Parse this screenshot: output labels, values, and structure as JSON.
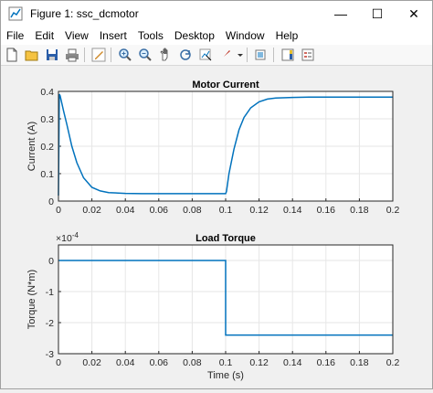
{
  "window": {
    "title": "Figure 1: ssc_dcmotor",
    "minimize": "—",
    "maximize": "☐",
    "close": "✕"
  },
  "menu": [
    "File",
    "Edit",
    "View",
    "Insert",
    "Tools",
    "Desktop",
    "Window",
    "Help"
  ],
  "toolbar": {
    "icons": [
      "new-figure-icon",
      "open-file-icon",
      "save-icon",
      "print-icon",
      "edit-plot-icon",
      "zoom-in-icon",
      "zoom-out-icon",
      "pan-icon",
      "rotate-3d-icon",
      "data-cursor-icon",
      "brush-icon",
      "link-plot-icon",
      "insert-colorbar-icon",
      "insert-legend-icon"
    ]
  },
  "colors": {
    "line": "#0072BD",
    "axes_bg": "#ffffff",
    "grid": "#e6e6e6",
    "axis": "#262626"
  },
  "chart_data": [
    {
      "type": "line",
      "title": "Motor Current",
      "xlabel": "",
      "ylabel": "Current (A)",
      "xlim": [
        0,
        0.2
      ],
      "ylim": [
        0,
        0.4
      ],
      "xticks": [
        "0",
        "0.02",
        "0.04",
        "0.06",
        "0.08",
        "0.1",
        "0.12",
        "0.14",
        "0.16",
        "0.18",
        "0.2"
      ],
      "yticks": [
        "0",
        "0.1",
        "0.2",
        "0.3",
        "0.4"
      ],
      "grid": true,
      "series": [
        {
          "x": [
            0,
            0.0005,
            0.001,
            0.003,
            0.005,
            0.008,
            0.011,
            0.015,
            0.02,
            0.025,
            0.03,
            0.04,
            0.05,
            0.07,
            0.09,
            0.1,
            0.1005,
            0.102,
            0.105,
            0.108,
            0.111,
            0.115,
            0.12,
            0.125,
            0.13,
            0.14,
            0.15,
            0.17,
            0.2
          ],
          "y": [
            0.02,
            0.39,
            0.384,
            0.33,
            0.28,
            0.2,
            0.14,
            0.085,
            0.05,
            0.037,
            0.031,
            0.028,
            0.027,
            0.027,
            0.027,
            0.027,
            0.035,
            0.1,
            0.19,
            0.26,
            0.305,
            0.34,
            0.362,
            0.372,
            0.376,
            0.378,
            0.379,
            0.379,
            0.379
          ]
        }
      ]
    },
    {
      "type": "line",
      "title": "Load Torque",
      "xlabel": "Time (s)",
      "ylabel": "Torque (N*m)",
      "exponent": "×10",
      "exponent_power": "-4",
      "xlim": [
        0,
        0.2
      ],
      "ylim": [
        -3,
        0.5
      ],
      "xticks": [
        "0",
        "0.02",
        "0.04",
        "0.06",
        "0.08",
        "0.1",
        "0.12",
        "0.14",
        "0.16",
        "0.18",
        "0.2"
      ],
      "yticks": [
        "0",
        "-1",
        "-2",
        "-3"
      ],
      "grid": true,
      "series": [
        {
          "x": [
            0,
            0.1,
            0.1,
            0.2
          ],
          "y": [
            0,
            0,
            -2.4,
            -2.4
          ]
        }
      ]
    }
  ]
}
